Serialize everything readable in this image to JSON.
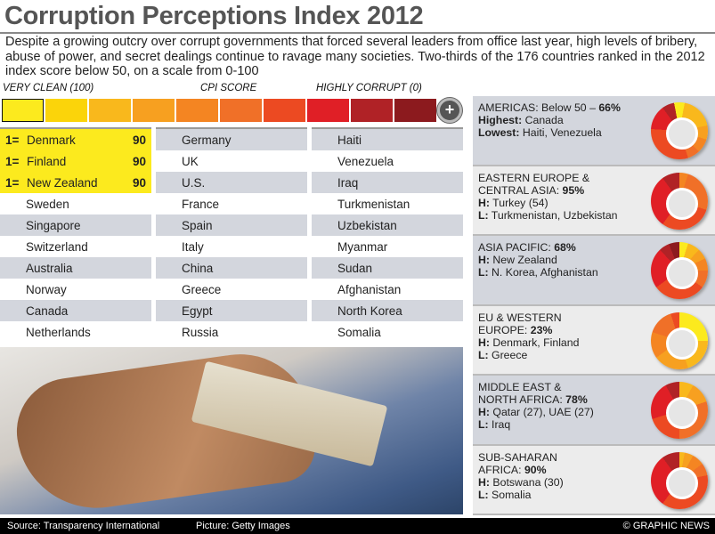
{
  "title": "Corruption Perceptions Index 2012",
  "intro": "Despite a growing outcry over corrupt governments that forced several leaders from office last year, high levels of bribery, abuse of power, and secret dealings continue to ravage many societies. Two-thirds of the 176 countries ranked in the 2012 index score below 50, on a scale from 0-100",
  "legend": {
    "left": "VERY CLEAN (100)",
    "mid": "CPI SCORE",
    "right": "HIGHLY CORRUPT (0)",
    "expand_icon": "plus-circle-icon",
    "expand": "+",
    "colors": [
      "#fcea1e",
      "#fbd40a",
      "#f9b81c",
      "#f7a020",
      "#f48522",
      "#f07028",
      "#ec4a22",
      "#e01f26",
      "#b02226",
      "#8c1a1e"
    ]
  },
  "columns": [
    [
      {
        "rank": "1=",
        "name": "Denmark",
        "score": "90"
      },
      {
        "rank": "1=",
        "name": "Finland",
        "score": "90"
      },
      {
        "rank": "1=",
        "name": "New Zealand",
        "score": "90"
      },
      {
        "name": "Sweden"
      },
      {
        "name": "Singapore"
      },
      {
        "name": "Switzerland"
      },
      {
        "name": "Australia"
      },
      {
        "name": "Norway"
      },
      {
        "name": "Canada"
      },
      {
        "name": "Netherlands"
      }
    ],
    [
      {
        "name": "Germany"
      },
      {
        "name": "UK"
      },
      {
        "name": "U.S."
      },
      {
        "name": "France"
      },
      {
        "name": "Spain"
      },
      {
        "name": "Italy"
      },
      {
        "name": "China"
      },
      {
        "name": "Greece"
      },
      {
        "name": "Egypt"
      },
      {
        "name": "Russia"
      }
    ],
    [
      {
        "name": "Haiti"
      },
      {
        "name": "Venezuela"
      },
      {
        "name": "Iraq"
      },
      {
        "name": "Turkmenistan"
      },
      {
        "name": "Uzbekistan"
      },
      {
        "name": "Myanmar"
      },
      {
        "name": "Sudan"
      },
      {
        "name": "Afghanistan"
      },
      {
        "name": "North Korea"
      },
      {
        "name": "Somalia"
      }
    ]
  ],
  "regions": [
    {
      "l1": "AMERICAS: Below 50 – ",
      "pct": "66%",
      "l2": "",
      "hk": "Highest:",
      "h": " Canada",
      "lk": "Lowest:",
      "lo": " Haiti, Venezuela"
    },
    {
      "l1": "EASTERN EUROPE &",
      "l2": "CENTRAL ASIA: ",
      "pct": "95%",
      "hk": "H:",
      "h": " Turkey (54)",
      "lk": "L:",
      "lo": " Turkmenistan, Uzbekistan"
    },
    {
      "l1": "ASIA PACIFIC: ",
      "pct": "68%",
      "l2": "",
      "hk": "H:",
      "h": " New Zealand",
      "lk": "L:",
      "lo": " N. Korea, Afghanistan"
    },
    {
      "l1": "EU & WESTERN",
      "l2": "EUROPE: ",
      "pct": "23%",
      "hk": "H:",
      "h": " Denmark, Finland",
      "lk": "L:",
      "lo": " Greece"
    },
    {
      "l1": "MIDDLE EAST &",
      "l2": "NORTH AFRICA: ",
      "pct": "78%",
      "hk": "H:",
      "h": " Qatar (27), UAE (27)",
      "lk": "L:",
      "lo": " Iraq"
    },
    {
      "l1": "SUB-SAHARAN",
      "l2": "AFRICA: ",
      "pct": "90%",
      "hk": "H:",
      "h": " Botswana (30)",
      "lk": "L:",
      "lo": " Somalia"
    }
  ],
  "footer": {
    "source": "Source: Transparency International",
    "picture": "Picture: Getty Images",
    "credit": "© GRAPHIC NEWS"
  }
}
